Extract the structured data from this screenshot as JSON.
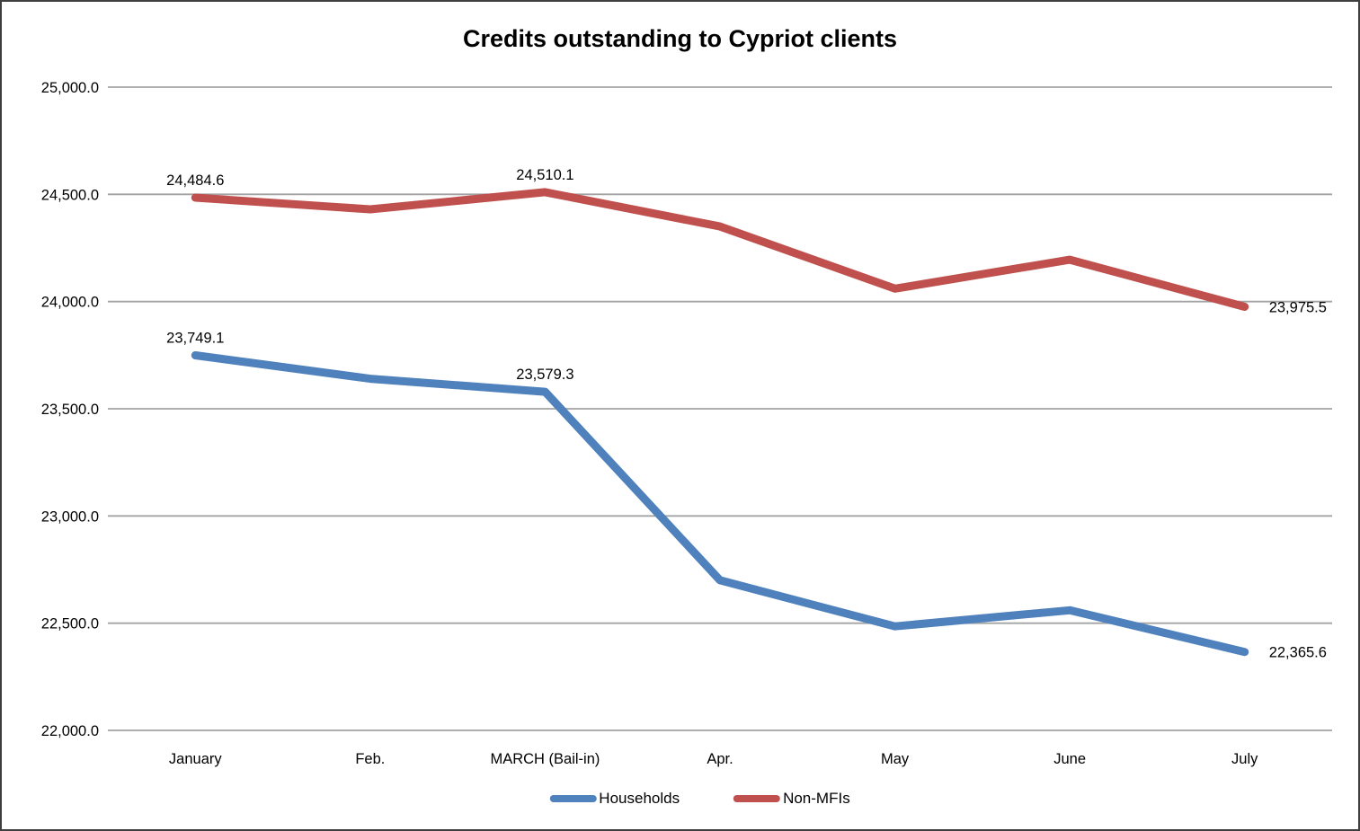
{
  "title": "Credits outstanding to Cypriot clients",
  "colors": {
    "households": "#4F81BD",
    "non_mfis": "#C0504D",
    "gridline": "#A3A3A3",
    "text": "#000000",
    "frame_border": "#3F3F3F",
    "background": "#FFFFFF"
  },
  "legend": {
    "items": [
      {
        "label": "Households",
        "color": "#4F81BD"
      },
      {
        "label": "Non-MFIs",
        "color": "#C0504D"
      }
    ]
  },
  "chart_data": {
    "type": "line",
    "title": "Credits outstanding to Cypriot clients",
    "categories": [
      "January",
      "Feb.",
      "MARCH (Bail-in)",
      "Apr.",
      "May",
      "June",
      "July"
    ],
    "series": [
      {
        "name": "Households",
        "color": "#4F81BD",
        "values": [
          23749.1,
          23640,
          23579.3,
          22700,
          22485,
          22560,
          22365.6
        ],
        "data_labels": [
          {
            "index": 0,
            "text": "23,749.1",
            "position": "above"
          },
          {
            "index": 2,
            "text": "23,579.3",
            "position": "above"
          },
          {
            "index": 6,
            "text": "22,365.6",
            "position": "right"
          }
        ]
      },
      {
        "name": "Non-MFIs",
        "color": "#C0504D",
        "values": [
          24484.6,
          24430,
          24510.1,
          24350,
          24060,
          24195,
          23975.5
        ],
        "data_labels": [
          {
            "index": 0,
            "text": "24,484.6",
            "position": "above"
          },
          {
            "index": 2,
            "text": "24,510.1",
            "position": "above"
          },
          {
            "index": 6,
            "text": "23,975.5",
            "position": "right"
          }
        ]
      }
    ],
    "xlabel": "",
    "ylabel": "",
    "ylim": [
      22000,
      25000
    ],
    "ytick_step": 500,
    "ytick_labels": [
      "22,000.0",
      "22,500.0",
      "23,000.0",
      "23,500.0",
      "24,000.0",
      "24,500.0",
      "25,000.0"
    ],
    "grid": true,
    "legend_position": "bottom",
    "line_width": 9
  }
}
